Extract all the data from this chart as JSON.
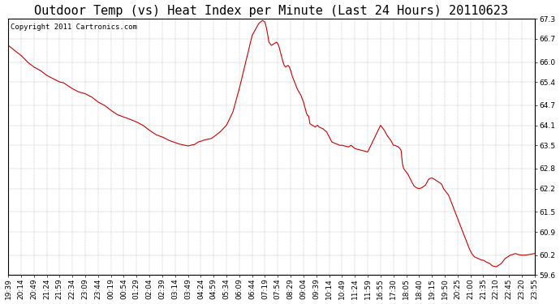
{
  "title": "Outdoor Temp (vs) Heat Index per Minute (Last 24 Hours) 20110623",
  "copyright": "Copyright 2011 Cartronics.com",
  "line_color": "#cc0000",
  "bg_color": "#ffffff",
  "grid_color": "#aaaaaa",
  "ylim": [
    59.6,
    67.3
  ],
  "yticks": [
    59.6,
    60.2,
    60.9,
    61.5,
    62.2,
    62.8,
    63.5,
    64.1,
    64.7,
    65.4,
    66.0,
    66.7,
    67.3
  ],
  "xtick_labels": [
    "19:39",
    "20:14",
    "20:49",
    "21:24",
    "21:59",
    "22:34",
    "23:09",
    "23:44",
    "00:19",
    "00:54",
    "01:29",
    "02:04",
    "02:39",
    "03:14",
    "03:49",
    "04:24",
    "04:59",
    "05:34",
    "06:09",
    "06:44",
    "07:19",
    "07:54",
    "08:29",
    "09:04",
    "09:39",
    "10:14",
    "10:49",
    "11:24",
    "11:59",
    "16:55",
    "17:30",
    "18:05",
    "18:40",
    "19:15",
    "19:50",
    "20:25",
    "21:00",
    "21:35",
    "22:10",
    "22:45",
    "23:20",
    "23:55"
  ],
  "title_fontsize": 11,
  "copyright_fontsize": 6.5,
  "tick_fontsize": 6.5,
  "figwidth": 6.9,
  "figheight": 3.75,
  "dpi": 100
}
